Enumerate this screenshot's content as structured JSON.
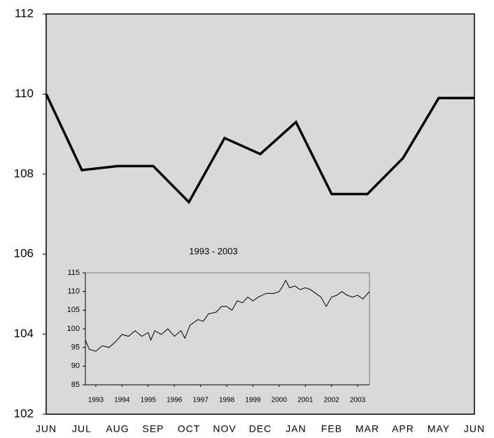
{
  "chart_data": [
    {
      "type": "line",
      "categories": [
        "JUN",
        "JUL",
        "AUG",
        "SEP",
        "OCT",
        "NOV",
        "DEC",
        "JAN",
        "FEB",
        "MAR",
        "APR",
        "MAY",
        "JUN"
      ],
      "values": [
        110,
        108.1,
        108.2,
        108.2,
        107.3,
        108.9,
        108.5,
        109.3,
        107.5,
        107.5,
        108.4,
        109.9,
        109.9
      ],
      "color": "#000000",
      "ylim": [
        102,
        112
      ],
      "yticks": [
        102,
        104,
        106,
        108,
        110,
        112
      ],
      "background": "#d9d9d9",
      "grid": false
    },
    {
      "type": "line",
      "title": "1993 - 2003",
      "x": [
        1992.6,
        1992.75,
        1993.0,
        1993.25,
        1993.5,
        1993.75,
        1994.0,
        1994.25,
        1994.5,
        1994.75,
        1995.0,
        1995.1,
        1995.25,
        1995.5,
        1995.75,
        1996.0,
        1996.25,
        1996.4,
        1996.6,
        1996.9,
        1997.1,
        1997.3,
        1997.6,
        1997.8,
        1998.0,
        1998.2,
        1998.4,
        1998.6,
        1998.8,
        1999.0,
        1999.2,
        1999.5,
        1999.8,
        2000.0,
        2000.1,
        2000.25,
        2000.4,
        2000.6,
        2000.8,
        2001.0,
        2001.2,
        2001.4,
        2001.6,
        2001.8,
        2002.0,
        2002.2,
        2002.4,
        2002.6,
        2002.8,
        2003.0,
        2003.2,
        2003.45
      ],
      "values": [
        97,
        94.5,
        94,
        95.5,
        95,
        96.5,
        98.5,
        98,
        99.5,
        98,
        99,
        97,
        99.5,
        98.5,
        100,
        98,
        99.5,
        97.5,
        101,
        102.5,
        102,
        104,
        104.5,
        106,
        106,
        105,
        107.5,
        107,
        108.5,
        107.5,
        108.5,
        109.5,
        109.5,
        110,
        111,
        113,
        111,
        111.5,
        110.5,
        111,
        110.5,
        109.5,
        108.5,
        106,
        108.5,
        109,
        110,
        109,
        108.5,
        109,
        108,
        110
      ],
      "color": "#000000",
      "xlim": [
        1992.6,
        2003.45
      ],
      "xticks": [
        1993,
        1994,
        1995,
        1996,
        1997,
        1998,
        1999,
        2000,
        2001,
        2002,
        2003
      ],
      "ylim": [
        85,
        115
      ],
      "yticks": [
        85,
        90,
        95,
        100,
        105,
        110,
        115
      ],
      "background": "#d9d9d9",
      "grid": false
    }
  ]
}
